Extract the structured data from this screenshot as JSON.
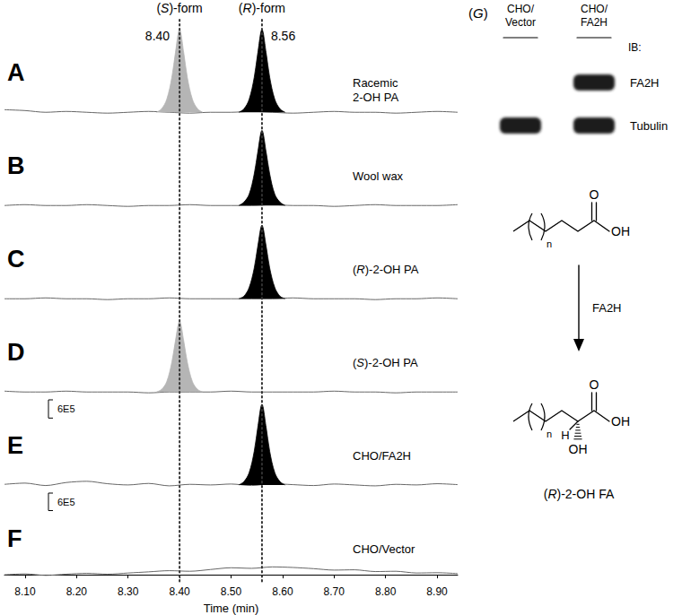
{
  "chart_data": [
    {
      "type": "line",
      "panel": "A",
      "annotation": "Racemic\n2-OH PA",
      "xlim": [
        8.06,
        8.94
      ],
      "ylim": [
        -5,
        100
      ],
      "tick_labels": false,
      "series": [
        {
          "type": "line",
          "color": "#666666",
          "x": [
            8.06,
            8.1,
            8.14,
            8.18,
            8.22,
            8.26,
            8.3,
            8.34,
            8.38,
            8.42,
            8.46,
            8.5,
            8.54,
            8.58,
            8.62,
            8.66,
            8.7,
            8.74,
            8.78,
            8.82,
            8.86,
            8.9,
            8.94
          ],
          "values": [
            3,
            2,
            0,
            1,
            0,
            -1,
            0,
            1,
            0,
            -1,
            0,
            0,
            1,
            0,
            -1,
            0,
            1,
            0,
            0,
            -1,
            0,
            1,
            0
          ]
        },
        {
          "type": "area",
          "color": "#b5b5b5",
          "x": [
            8.355,
            8.365,
            8.375,
            8.385,
            8.392,
            8.4,
            8.408,
            8.415,
            8.425,
            8.435,
            8.445
          ],
          "values": [
            0,
            4,
            15,
            41,
            70,
            97,
            70,
            41,
            15,
            4,
            0
          ]
        },
        {
          "type": "area",
          "color": "#000000",
          "x": [
            8.515,
            8.525,
            8.535,
            8.545,
            8.552,
            8.56,
            8.568,
            8.575,
            8.585,
            8.595,
            8.605
          ],
          "values": [
            0,
            4,
            15,
            41,
            70,
            97,
            70,
            41,
            15,
            4,
            0
          ]
        }
      ]
    },
    {
      "type": "line",
      "panel": "B",
      "annotation": "Wool wax",
      "xlim": [
        8.06,
        8.94
      ],
      "ylim": [
        -5,
        100
      ],
      "tick_labels": false,
      "series": [
        {
          "type": "line",
          "color": "#666666",
          "x": [
            8.06,
            8.1,
            8.14,
            8.18,
            8.22,
            8.26,
            8.3,
            8.34,
            8.38,
            8.42,
            8.46,
            8.5,
            8.54,
            8.58,
            8.62,
            8.66,
            8.7,
            8.74,
            8.78,
            8.82,
            8.86,
            8.9,
            8.94
          ],
          "values": [
            0,
            1,
            0,
            0,
            1,
            0,
            -1,
            0,
            0,
            1,
            0,
            0,
            0,
            1,
            0,
            0,
            -1,
            0,
            1,
            0,
            0,
            0,
            1
          ]
        },
        {
          "type": "area",
          "color": "#000000",
          "x": [
            8.515,
            8.525,
            8.535,
            8.545,
            8.552,
            8.56,
            8.568,
            8.575,
            8.585,
            8.595,
            8.605
          ],
          "values": [
            0,
            4,
            13,
            37,
            63,
            88,
            63,
            37,
            13,
            4,
            0
          ]
        }
      ]
    },
    {
      "type": "line",
      "panel": "C",
      "annotation": "(R)-2-OH PA",
      "xlim": [
        8.06,
        8.94
      ],
      "ylim": [
        -5,
        100
      ],
      "tick_labels": false,
      "series": [
        {
          "type": "line",
          "color": "#666666",
          "x": [
            8.06,
            8.1,
            8.14,
            8.18,
            8.22,
            8.26,
            8.3,
            8.34,
            8.38,
            8.42,
            8.46,
            8.5,
            8.54,
            8.58,
            8.62,
            8.66,
            8.7,
            8.74,
            8.78,
            8.82,
            8.86,
            8.9,
            8.94
          ],
          "values": [
            0,
            0,
            1,
            0,
            0,
            -1,
            0,
            0,
            1,
            0,
            0,
            0,
            0,
            0,
            1,
            0,
            0,
            0,
            -1,
            0,
            0,
            1,
            0
          ]
        },
        {
          "type": "area",
          "color": "#000000",
          "x": [
            8.515,
            8.525,
            8.535,
            8.545,
            8.552,
            8.56,
            8.568,
            8.575,
            8.585,
            8.595,
            8.605
          ],
          "values": [
            0,
            3,
            13,
            36,
            62,
            86,
            62,
            36,
            13,
            3,
            0
          ]
        }
      ]
    },
    {
      "type": "line",
      "panel": "D",
      "annotation": "(S)-2-OH PA",
      "xlim": [
        8.06,
        8.94
      ],
      "ylim": [
        -5,
        100
      ],
      "tick_labels": false,
      "series": [
        {
          "type": "line",
          "color": "#666666",
          "x": [
            8.06,
            8.1,
            8.14,
            8.18,
            8.22,
            8.26,
            8.3,
            8.34,
            8.38,
            8.42,
            8.46,
            8.5,
            8.54,
            8.58,
            8.62,
            8.66,
            8.7,
            8.74,
            8.78,
            8.82,
            8.86,
            8.9,
            8.94
          ],
          "values": [
            1,
            0,
            0,
            1,
            0,
            0,
            0,
            -1,
            0,
            0,
            0,
            1,
            0,
            0,
            0,
            0,
            1,
            0,
            0,
            -1,
            0,
            0,
            0
          ]
        },
        {
          "type": "area",
          "color": "#b5b5b5",
          "x": [
            8.355,
            8.365,
            8.375,
            8.385,
            8.392,
            8.4,
            8.408,
            8.415,
            8.425,
            8.435,
            8.445
          ],
          "values": [
            0,
            3,
            12,
            35,
            60,
            83,
            60,
            35,
            12,
            3,
            0
          ]
        }
      ]
    },
    {
      "type": "line",
      "panel": "E",
      "annotation": "CHO/FA2H",
      "xlim": [
        8.06,
        8.94
      ],
      "ylim": [
        -150000,
        2800000
      ],
      "tick_labels": false,
      "scale_bar": {
        "value": 600000,
        "label": "6E5"
      },
      "series": [
        {
          "type": "line",
          "color": "#666666",
          "x": [
            8.06,
            8.1,
            8.14,
            8.18,
            8.22,
            8.26,
            8.3,
            8.34,
            8.38,
            8.42,
            8.46,
            8.5,
            8.54,
            8.58,
            8.62,
            8.66,
            8.7,
            8.74,
            8.78,
            8.82,
            8.86,
            8.9,
            8.94
          ],
          "values": [
            20000,
            60000,
            -20000,
            80000,
            120000,
            40000,
            0,
            50000,
            -30000,
            20000,
            0,
            30000,
            -20000,
            40000,
            10000,
            -20000,
            30000,
            0,
            -30000,
            20000,
            0,
            40000,
            10000
          ]
        },
        {
          "type": "area",
          "color": "#000000",
          "x": [
            8.515,
            8.525,
            8.535,
            8.545,
            8.552,
            8.56,
            8.568,
            8.575,
            8.585,
            8.595,
            8.605
          ],
          "values": [
            0,
            110000,
            400000,
            1110000,
            1910000,
            2650000,
            1910000,
            1110000,
            400000,
            110000,
            0
          ]
        }
      ]
    },
    {
      "type": "line",
      "panel": "F",
      "annotation": "CHO/Vector",
      "xlim": [
        8.06,
        8.94
      ],
      "ylim": [
        -150000,
        2800000
      ],
      "tick_labels": "x",
      "x_label": "Time (min)",
      "xticks": [
        {
          "value": 8.1,
          "label": "8.10"
        },
        {
          "value": 8.2,
          "label": "8.20"
        },
        {
          "value": 8.3,
          "label": "8.30"
        },
        {
          "value": 8.4,
          "label": "8.40"
        },
        {
          "value": 8.5,
          "label": "8.50"
        },
        {
          "value": 8.6,
          "label": "8.60"
        },
        {
          "value": 8.7,
          "label": "8.70"
        },
        {
          "value": 8.8,
          "label": "8.80"
        },
        {
          "value": 8.9,
          "label": "8.90"
        }
      ],
      "scale_bar": {
        "value": 600000,
        "label": "6E5"
      },
      "series": [
        {
          "type": "line",
          "color": "#666666",
          "x": [
            8.06,
            8.1,
            8.14,
            8.18,
            8.22,
            8.26,
            8.3,
            8.34,
            8.38,
            8.42,
            8.46,
            8.5,
            8.54,
            8.58,
            8.62,
            8.66,
            8.7,
            8.74,
            8.78,
            8.82,
            8.86,
            8.9,
            8.94
          ],
          "values": [
            0,
            30000,
            -20000,
            20000,
            50000,
            20000,
            60000,
            100000,
            140000,
            120000,
            180000,
            240000,
            220000,
            270000,
            250000,
            210000,
            160000,
            170000,
            110000,
            120000,
            60000,
            70000,
            40000
          ]
        }
      ]
    }
  ],
  "reference_lines": [
    {
      "x": {
        "value": 8.4,
        "label": "8.40"
      },
      "label": "(S)-form"
    },
    {
      "x": 8.56,
      "label": "(R)-form"
    }
  ],
  "western_blot": {
    "label": "(G)",
    "lanes": [
      "CHO/\nVector",
      "CHO/\nFA2H"
    ],
    "ib_label": "IB:",
    "rows": [
      {
        "label": "FA2H",
        "present": [
          false,
          true
        ]
      },
      {
        "label": "Tubulin",
        "present": [
          true,
          true
        ]
      }
    ]
  },
  "scheme": {
    "enzyme": "FA2H",
    "reactant": {
      "carbonyl": "O",
      "acid": "OH",
      "repeat": "n"
    },
    "product": {
      "carbonyl": "O",
      "acid": "OH",
      "hydroxyl": "OH",
      "hydrogen": "H",
      "repeat": "n",
      "name": "(R)-2-OH FA"
    }
  }
}
